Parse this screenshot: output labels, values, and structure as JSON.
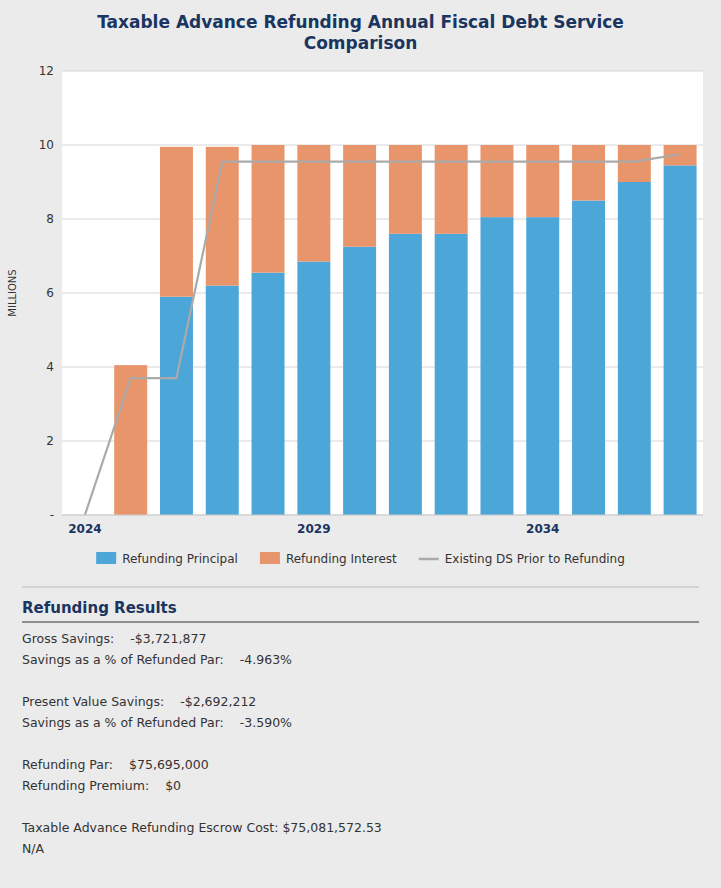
{
  "chart_data": {
    "type": "bar",
    "title": "Taxable Advance Refunding Annual Fiscal Debt Service\nComparison",
    "y_label": "MILLIONS",
    "categories": [
      "2024",
      null,
      null,
      null,
      null,
      "2029",
      null,
      null,
      null,
      null,
      "2034",
      null,
      null,
      null
    ],
    "series": [
      {
        "name": "Refunding Principal",
        "color": "#4da6d8",
        "type": "bar",
        "values": [
          0.0,
          0.0,
          5.9,
          6.2,
          6.55,
          6.85,
          7.25,
          7.6,
          7.6,
          8.05,
          8.05,
          8.5,
          9.0,
          9.45
        ]
      },
      {
        "name": "Refunding Interest",
        "color": "#e8956b",
        "type": "bar",
        "values": [
          0.0,
          4.05,
          4.05,
          3.75,
          3.45,
          3.15,
          2.75,
          2.4,
          2.4,
          1.95,
          1.95,
          1.5,
          1.0,
          0.55
        ]
      },
      {
        "name": "Existing DS Prior to Refunding",
        "color": "#aaaaaa",
        "type": "line",
        "values": [
          0.0,
          3.7,
          3.7,
          9.55,
          9.55,
          9.55,
          9.55,
          9.55,
          9.55,
          9.55,
          9.55,
          9.55,
          9.55,
          9.75
        ]
      }
    ],
    "stacked": true,
    "ylim": [
      0,
      12
    ],
    "yticks": [
      {
        "value": 0,
        "label": "-"
      },
      2,
      4,
      6,
      8,
      10,
      12
    ],
    "grid": true,
    "legend": "bottom",
    "annotations": {
      "title": "Refunding Results",
      "groups": [
        [
          [
            "Gross Savings:",
            "-$3,721,877"
          ],
          [
            "Savings as a % of Refunded Par:",
            "-4.963%"
          ]
        ],
        [
          [
            "Present Value Savings:",
            "-$2,692,212"
          ],
          [
            "Savings as a % of Refunded Par:",
            "-3.590%"
          ]
        ],
        [
          [
            "Refunding Par:",
            "$75,695,000"
          ],
          [
            "Refunding Premium:",
            "$0"
          ]
        ],
        [
          [
            "Taxable Advance Refunding Escrow Cost: $75,081,572.53"
          ],
          [
            "N/A"
          ]
        ]
      ]
    }
  }
}
